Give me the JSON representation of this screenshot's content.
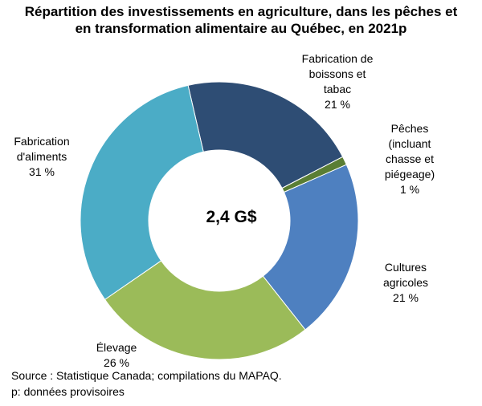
{
  "title": {
    "line1": "Répartition des investissements en agriculture, dans les pêches et",
    "line2": "en transformation alimentaire au Québec, en 2021p"
  },
  "center_label": "2,4 G$",
  "labels": {
    "fabrication_boissons": [
      "Fabrication de",
      "boissons et",
      "tabac",
      "21 %"
    ],
    "peches": [
      "Pêches",
      "(incluant",
      "chasse et",
      "piégeage)",
      "1 %"
    ],
    "cultures": [
      "Cultures",
      "agricoles",
      "21 %"
    ],
    "elevage": [
      "Élevage",
      "26 %"
    ],
    "fabrication_aliments": [
      "Fabrication",
      "d'aliments",
      "31 %"
    ]
  },
  "footer": {
    "source": "Source : Statistique Canada; compilations du MAPAQ.",
    "note": "p: données provisoires"
  },
  "chart_data": {
    "type": "pie",
    "donut": true,
    "total_label": "2,4 G$",
    "categories": [
      "Fabrication de boissons et tabac",
      "Pêches (incluant chasse et piégeage)",
      "Cultures agricoles",
      "Élevage",
      "Fabrication d'aliments"
    ],
    "values": [
      21,
      1,
      21,
      26,
      31
    ],
    "unit": "%",
    "colors": [
      "#2e4d74",
      "#5a7e34",
      "#4e80c0",
      "#9bbb59",
      "#4bacc6"
    ],
    "start_angle_deg": -13,
    "direction": "clockwise"
  }
}
